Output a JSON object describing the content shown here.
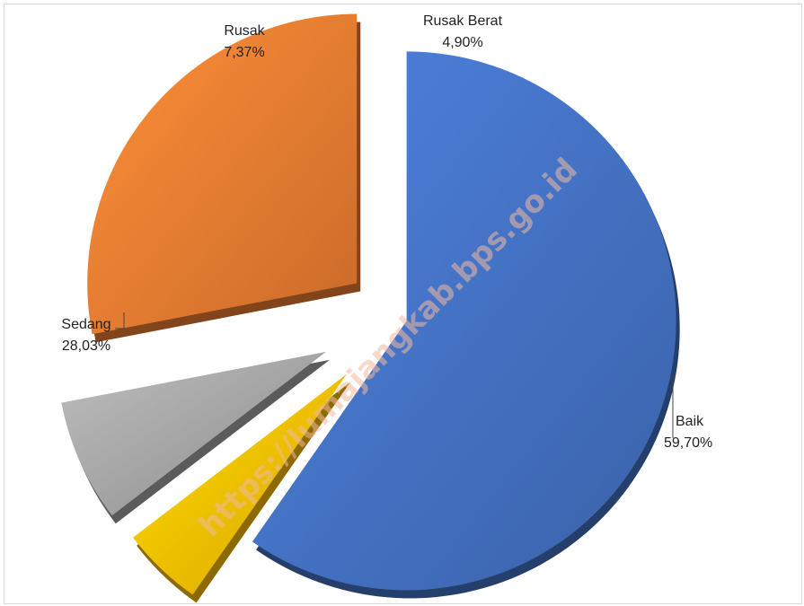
{
  "chart_data": {
    "type": "pie",
    "title": "",
    "slices": [
      {
        "label": "Baik",
        "value": 59.7,
        "value_text": "59,70%",
        "color": "#4472c4"
      },
      {
        "label": "Rusak Berat",
        "value": 4.9,
        "value_text": "4,90%",
        "color": "#ffc000"
      },
      {
        "label": "Rusak",
        "value": 7.37,
        "value_text": "7,37%",
        "color": "#a5a5a5"
      },
      {
        "label": "Sedang",
        "value": 28.03,
        "value_text": "28,03%",
        "color": "#ed7d31"
      }
    ],
    "legend": "none",
    "style": "3d-exploded"
  },
  "watermark": "https://lumajangkab.bps.go.id"
}
